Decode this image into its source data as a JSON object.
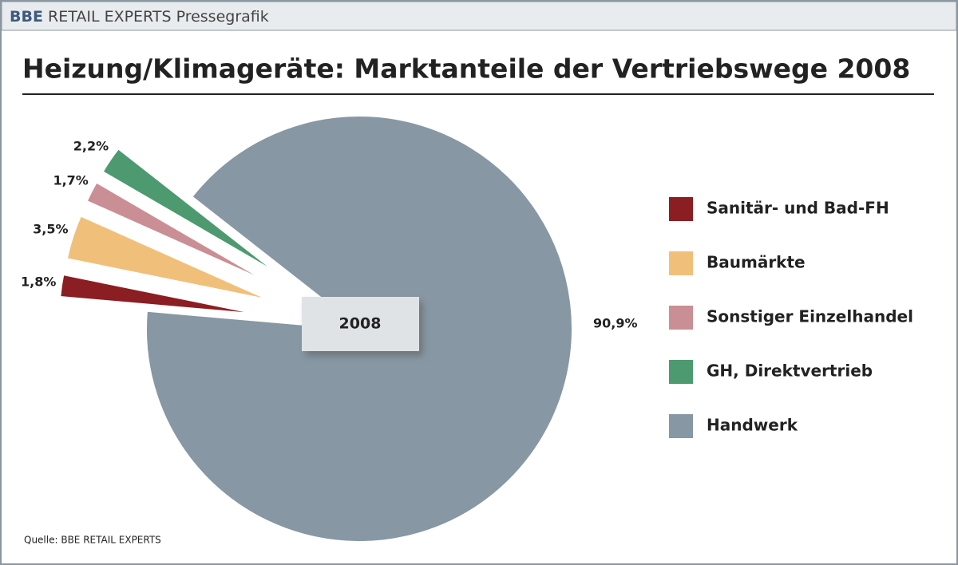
{
  "header": {
    "brand": "BBE",
    "text": "RETAIL EXPERTS Pressegrafik"
  },
  "chart_data": {
    "type": "pie",
    "title": "Heizung/Klimageräte: Marktanteile der Vertriebswege 2008",
    "center_label": "2008",
    "categories": [
      "Sanitär- und Bad-FH",
      "Baumärkte",
      "Sonstiger Einzelhandel",
      "GH, Direktvertrieb",
      "Handwerk"
    ],
    "values": [
      1.8,
      3.5,
      1.7,
      2.2,
      90.9
    ],
    "value_labels": [
      "1,8%",
      "3,5%",
      "1,7%",
      "2,2%",
      "90,9%"
    ],
    "colors": [
      "#8b1e22",
      "#f0c07a",
      "#c98f94",
      "#4e9a70",
      "#8797a4"
    ]
  },
  "source": "Quelle: BBE RETAIL EXPERTS"
}
